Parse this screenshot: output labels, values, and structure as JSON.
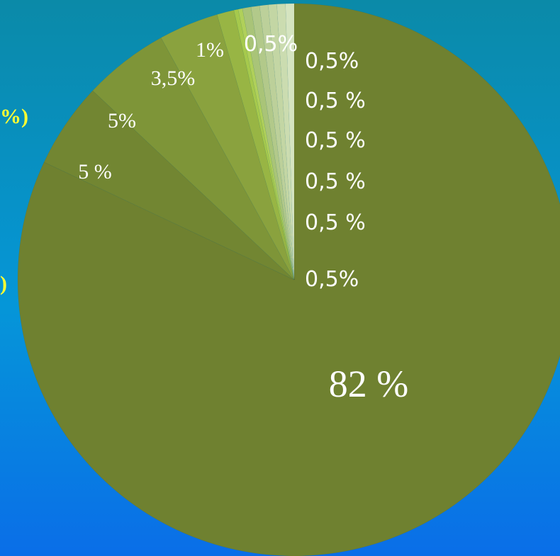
{
  "chart_data": {
    "type": "pie",
    "slices": [
      {
        "label": "82 %",
        "value": 82,
        "color": "#6f8130"
      },
      {
        "label": "5 %",
        "value": 5,
        "color": "#728632"
      },
      {
        "label": "5%",
        "value": 5,
        "color": "#7e9538"
      },
      {
        "label": "3,5%",
        "value": 3.5,
        "color": "#8aa23e"
      },
      {
        "label": "1%",
        "value": 1,
        "color": "#98b544"
      },
      {
        "label": "",
        "value": 0.25,
        "color": "#a6c94c"
      },
      {
        "label": "",
        "value": 0.25,
        "color": "#b0d05a"
      },
      {
        "label": "",
        "value": 0.5,
        "color": "#a9c478"
      },
      {
        "label": "",
        "value": 0.5,
        "color": "#b2c98a"
      },
      {
        "label": "",
        "value": 0.5,
        "color": "#bcd09a"
      },
      {
        "label": "0,5%",
        "value": 0.5,
        "color": "#c3d6a4"
      },
      {
        "label": "",
        "value": 0.5,
        "color": "#cbdcb0"
      },
      {
        "label": "",
        "value": 0.5,
        "color": "#d5e4c0"
      }
    ],
    "side_labels": [
      "0,5%",
      "0,5 %",
      "0,5 %",
      "0,5 %",
      "0,5 %",
      "0,5%"
    ],
    "edge_labels": [
      "%)",
      ")"
    ]
  },
  "colors": {
    "background_top": "#0b8aa8",
    "background_bottom": "#0a6ee8",
    "label_text": "#ffffff",
    "edge_label_text": "#ffff33"
  }
}
